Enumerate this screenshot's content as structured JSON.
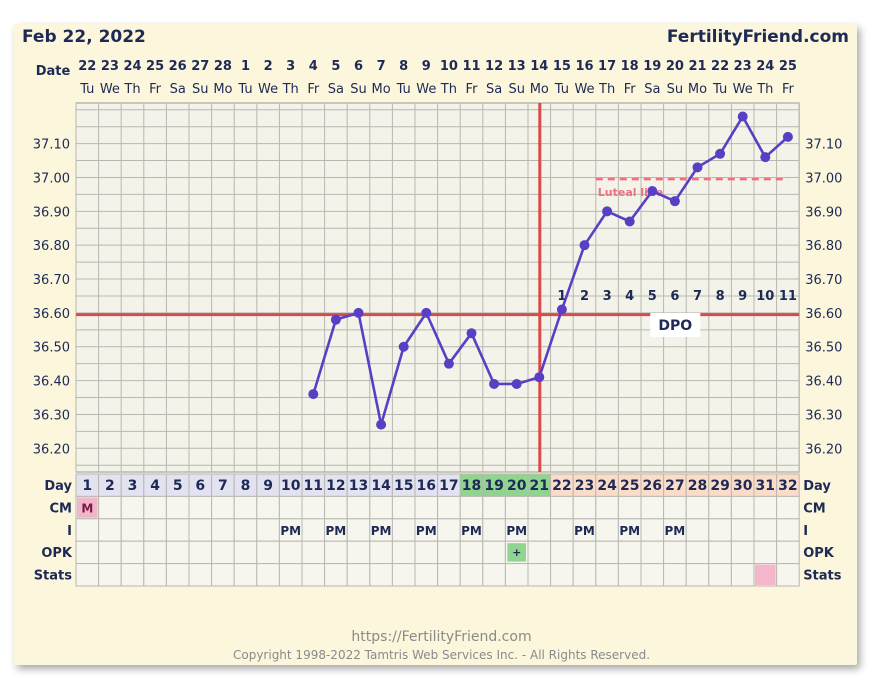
{
  "header": {
    "date_title": "Feb 22, 2022",
    "site_name": "FertilityFriend.com"
  },
  "footer": {
    "url": "https://FertilityFriend.com",
    "copyright": "Copyright 1998-2022 Tamtris Web Services Inc. - All Rights Reserved."
  },
  "row_labels": {
    "date": "Date",
    "day": "Day",
    "cm": "CM",
    "intercourse": "I",
    "opk": "OPK",
    "stats": "Stats"
  },
  "colors": {
    "line": "#5a3fc4",
    "coverline": "#d94a4a",
    "ovulation_line": "#d94a4a",
    "luteal_line": "#f07080",
    "fertile_day": "#8fd48f",
    "luteal_day": "#fbdcc8",
    "follicular_day": "#e2e2f0",
    "cm_marker": "#f2b6cc",
    "stats_marker": "#f5b6cb",
    "opk_positive": "#8fd48f"
  },
  "chart_data": {
    "type": "line",
    "title": "Feb 22, 2022",
    "dates": [
      "22",
      "23",
      "24",
      "25",
      "26",
      "27",
      "28",
      "1",
      "2",
      "3",
      "4",
      "5",
      "6",
      "7",
      "8",
      "9",
      "10",
      "11",
      "12",
      "13",
      "14",
      "15",
      "16",
      "17",
      "18",
      "19",
      "20",
      "21",
      "22",
      "23",
      "24",
      "25"
    ],
    "weekdays": [
      "Tu",
      "We",
      "Th",
      "Fr",
      "Sa",
      "Su",
      "Mo",
      "Tu",
      "We",
      "Th",
      "Fr",
      "Sa",
      "Su",
      "Mo",
      "Tu",
      "We",
      "Th",
      "Fr",
      "Sa",
      "Su",
      "Mo",
      "Tu",
      "We",
      "Th",
      "Fr",
      "Sa",
      "Su",
      "Mo",
      "Tu",
      "We",
      "Th",
      "Fr"
    ],
    "cycle_days": [
      1,
      2,
      3,
      4,
      5,
      6,
      7,
      8,
      9,
      10,
      11,
      12,
      13,
      14,
      15,
      16,
      17,
      18,
      19,
      20,
      21,
      22,
      23,
      24,
      25,
      26,
      27,
      28,
      29,
      30,
      31,
      32
    ],
    "day_phases": [
      "F",
      "F",
      "F",
      "F",
      "F",
      "F",
      "F",
      "F",
      "F",
      "F",
      "F",
      "F",
      "F",
      "F",
      "F",
      "F",
      "F",
      "fertile",
      "fertile",
      "fertile",
      "fertile",
      "L",
      "L",
      "L",
      "L",
      "L",
      "L",
      "L",
      "L",
      "L",
      "L",
      "L"
    ],
    "temperatures": [
      null,
      null,
      null,
      null,
      null,
      null,
      null,
      null,
      null,
      null,
      36.36,
      36.58,
      36.6,
      36.27,
      36.5,
      36.6,
      36.45,
      36.54,
      36.39,
      36.39,
      36.41,
      36.61,
      36.8,
      36.9,
      36.87,
      36.96,
      36.93,
      37.03,
      37.07,
      37.18,
      37.06,
      37.12
    ],
    "y_ticks": [
      "37.10",
      "37.00",
      "36.90",
      "36.80",
      "36.70",
      "36.60",
      "36.50",
      "36.40",
      "36.30",
      "36.20"
    ],
    "ylim": [
      36.13,
      37.22
    ],
    "coverline": 36.595,
    "ovulation_cycle_day": 21,
    "luteal_line": {
      "label": "Luteal line",
      "value": 36.995,
      "start_cycle_day": 24
    },
    "dpo_labels": [
      "1",
      "2",
      "3",
      "4",
      "5",
      "6",
      "7",
      "8",
      "9",
      "10",
      "11"
    ],
    "dpo_caption": "DPO",
    "cm": [
      {
        "cycle_day": 1,
        "value": "M"
      }
    ],
    "intercourse": [
      {
        "cycle_day": 10,
        "value": "PM"
      },
      {
        "cycle_day": 12,
        "value": "PM"
      },
      {
        "cycle_day": 14,
        "value": "PM"
      },
      {
        "cycle_day": 16,
        "value": "PM"
      },
      {
        "cycle_day": 18,
        "value": "PM"
      },
      {
        "cycle_day": 20,
        "value": "PM"
      },
      {
        "cycle_day": 23,
        "value": "PM"
      },
      {
        "cycle_day": 25,
        "value": "PM"
      },
      {
        "cycle_day": 27,
        "value": "PM"
      }
    ],
    "opk": [
      {
        "cycle_day": 20,
        "value": "+"
      }
    ],
    "stats": [
      {
        "cycle_day": 31,
        "value": ""
      }
    ]
  }
}
